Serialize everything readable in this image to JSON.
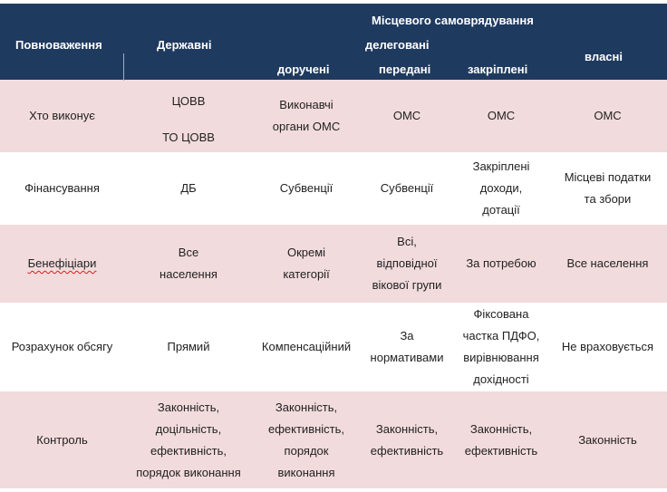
{
  "header": {
    "powers": "Повноваження",
    "state": "Державні",
    "local": "Місцевого самоврядування",
    "delegated": "делеговані",
    "entrusted": "доручені",
    "transferred": "передані",
    "assigned": "закріплені",
    "own": "власні"
  },
  "rows": [
    {
      "label": "Хто виконує",
      "state_top": "ЦОВВ",
      "state_bottom": "ТО ЦОВВ",
      "entrusted": "Виконавчі\nоргани ОМС",
      "transferred": "ОМС",
      "assigned": "ОМС",
      "own": "ОМС"
    },
    {
      "label": "Фінансування",
      "state": "ДБ",
      "entrusted": "Субвенції",
      "transferred": "Субвенції",
      "assigned": "Закріплені\nдоходи,\nдотації",
      "own": "Місцеві податки\nта збори"
    },
    {
      "label": "Бенефіціари",
      "state": "Все\nнаселення",
      "entrusted": "Окремі\nкатегорії",
      "transferred": "Всі,\nвідповідної\nвікової групи",
      "assigned": "За потребою",
      "own": "Все населення"
    },
    {
      "label": "Розрахунок обсягу",
      "state": "Прямий",
      "entrusted": "Компенсаційний",
      "transferred": "За\nнормативами",
      "assigned": "Фіксована\nчастка ПДФО,\nвирівнювання\nдохідності",
      "own": "Не враховується"
    },
    {
      "label": "Контроль",
      "state": "Законність,\nдоцільність,\nефективність,\nпорядок виконання",
      "entrusted": "Законність,\nефективність,\nпорядок\nвиконання",
      "transferred": "Законність,\nефективність",
      "assigned": "Законність,\nефективність",
      "own": "Законність"
    }
  ]
}
